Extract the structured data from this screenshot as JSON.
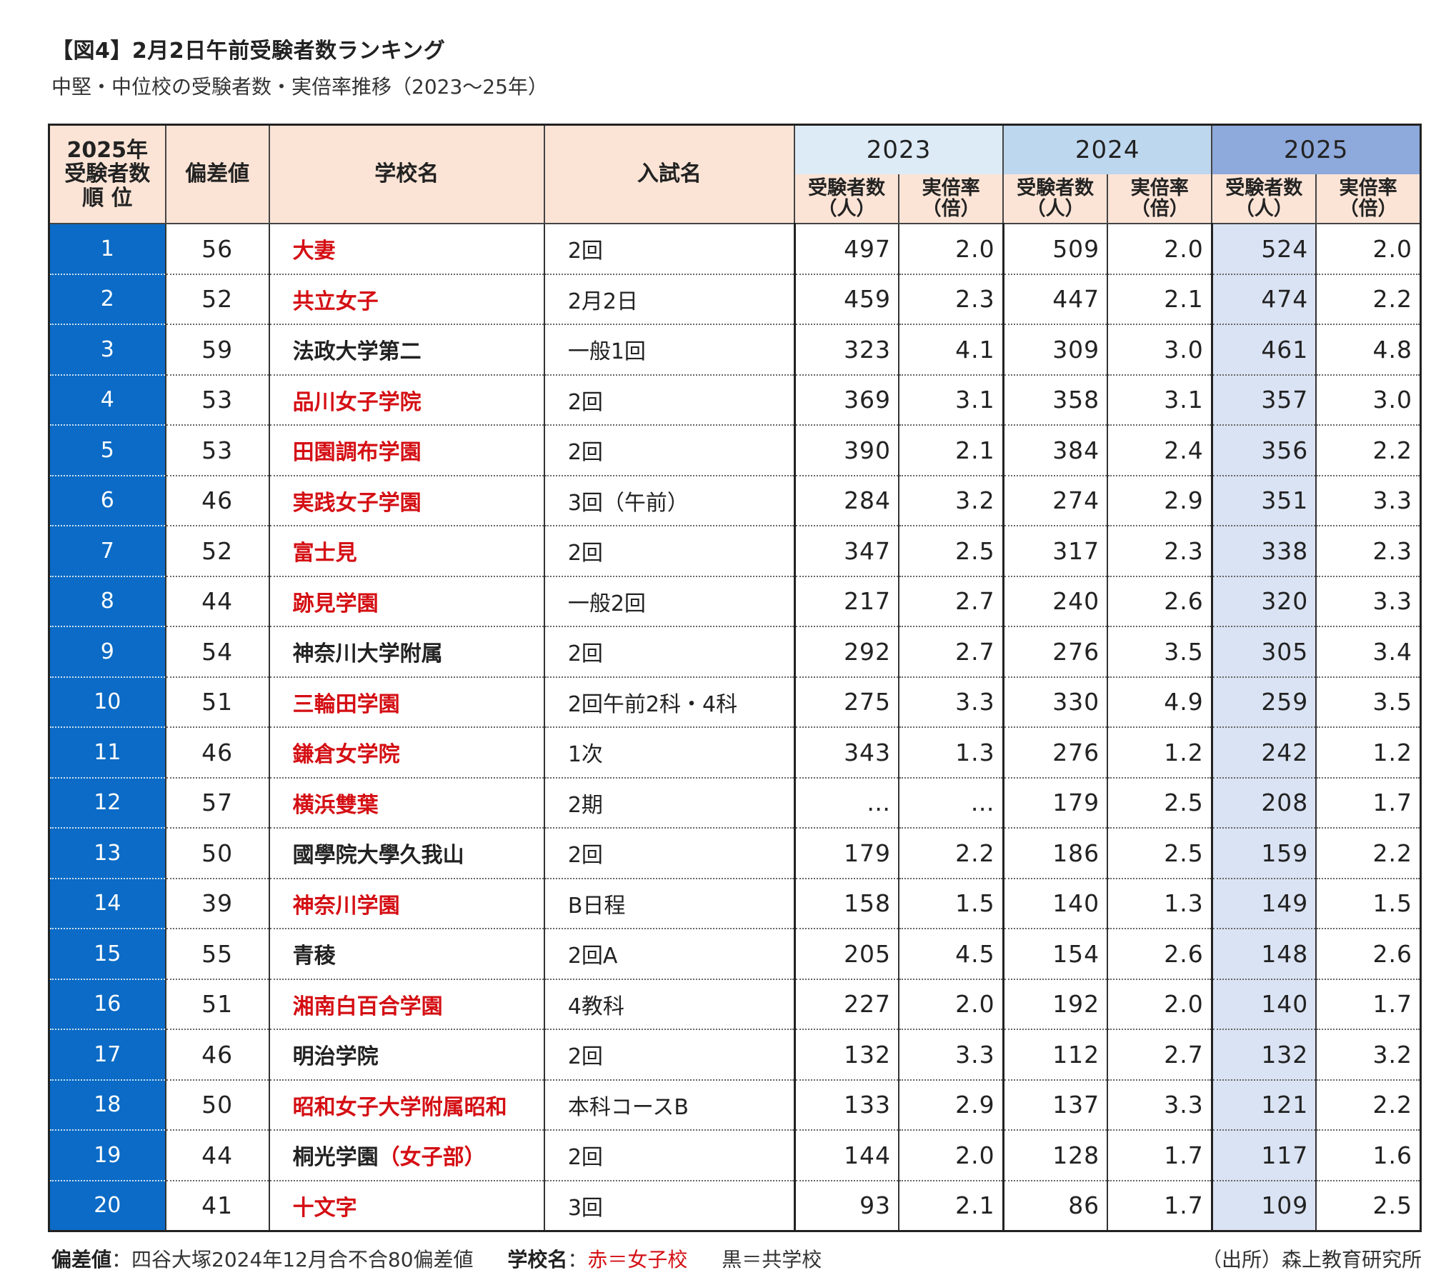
{
  "title": "【図4】2月2日午前受験者数ランキング",
  "subtitle": "中堅・中位校の受験者数・実倍率推移（2023～25年）",
  "header": {
    "rank_lines": [
      "2025年",
      "受験者数",
      "順 位"
    ],
    "deviation": "偏差値",
    "school": "学校名",
    "exam": "入試名",
    "years": [
      "2023",
      "2024",
      "2025"
    ],
    "applicants_line1": "受験者数",
    "applicants_line2": "（人）",
    "rate_line1": "実倍率",
    "rate_line2": "（倍）"
  },
  "colors": {
    "rank_bg": "#0b6bc6",
    "header_bg": "#fbe4d6",
    "year2023_bg": "#ddebf7",
    "year2024_bg": "#bdd7ee",
    "year2025_bg": "#8ea9db",
    "highlight_2025": "#dae3f3",
    "girls_school": "#d40f14"
  },
  "rows": [
    {
      "rank": "1",
      "dev": "56",
      "school": "大妻",
      "school_red": "大妻",
      "school_black": "",
      "exam": "2回",
      "a2023": "497",
      "r2023": "2.0",
      "a2024": "509",
      "r2024": "2.0",
      "a2025": "524",
      "r2025": "2.0"
    },
    {
      "rank": "2",
      "dev": "52",
      "school": "共立女子",
      "school_red": "共立女子",
      "school_black": "",
      "exam": "2月2日",
      "a2023": "459",
      "r2023": "2.3",
      "a2024": "447",
      "r2024": "2.1",
      "a2025": "474",
      "r2025": "2.2"
    },
    {
      "rank": "3",
      "dev": "59",
      "school": "法政大学第二",
      "school_red": "",
      "school_black": "法政大学第二",
      "exam": "一般1回",
      "a2023": "323",
      "r2023": "4.1",
      "a2024": "309",
      "r2024": "3.0",
      "a2025": "461",
      "r2025": "4.8"
    },
    {
      "rank": "4",
      "dev": "53",
      "school": "品川女子学院",
      "school_red": "品川女子学院",
      "school_black": "",
      "exam": "2回",
      "a2023": "369",
      "r2023": "3.1",
      "a2024": "358",
      "r2024": "3.1",
      "a2025": "357",
      "r2025": "3.0"
    },
    {
      "rank": "5",
      "dev": "53",
      "school": "田園調布学園",
      "school_red": "田園調布学園",
      "school_black": "",
      "exam": "2回",
      "a2023": "390",
      "r2023": "2.1",
      "a2024": "384",
      "r2024": "2.4",
      "a2025": "356",
      "r2025": "2.2"
    },
    {
      "rank": "6",
      "dev": "46",
      "school": "実践女子学園",
      "school_red": "実践女子学園",
      "school_black": "",
      "exam": "3回（午前）",
      "a2023": "284",
      "r2023": "3.2",
      "a2024": "274",
      "r2024": "2.9",
      "a2025": "351",
      "r2025": "3.3"
    },
    {
      "rank": "7",
      "dev": "52",
      "school": "富士見",
      "school_red": "富士見",
      "school_black": "",
      "exam": "2回",
      "a2023": "347",
      "r2023": "2.5",
      "a2024": "317",
      "r2024": "2.3",
      "a2025": "338",
      "r2025": "2.3"
    },
    {
      "rank": "8",
      "dev": "44",
      "school": "跡見学園",
      "school_red": "跡見学園",
      "school_black": "",
      "exam": "一般2回",
      "a2023": "217",
      "r2023": "2.7",
      "a2024": "240",
      "r2024": "2.6",
      "a2025": "320",
      "r2025": "3.3"
    },
    {
      "rank": "9",
      "dev": "54",
      "school": "神奈川大学附属",
      "school_red": "",
      "school_black": "神奈川大学附属",
      "exam": "2回",
      "a2023": "292",
      "r2023": "2.7",
      "a2024": "276",
      "r2024": "3.5",
      "a2025": "305",
      "r2025": "3.4"
    },
    {
      "rank": "10",
      "dev": "51",
      "school": "三輪田学園",
      "school_red": "三輪田学園",
      "school_black": "",
      "exam": "2回午前2科・4科",
      "a2023": "275",
      "r2023": "3.3",
      "a2024": "330",
      "r2024": "4.9",
      "a2025": "259",
      "r2025": "3.5"
    },
    {
      "rank": "11",
      "dev": "46",
      "school": "鎌倉女学院",
      "school_red": "鎌倉女学院",
      "school_black": "",
      "exam": "1次",
      "a2023": "343",
      "r2023": "1.3",
      "a2024": "276",
      "r2024": "1.2",
      "a2025": "242",
      "r2025": "1.2"
    },
    {
      "rank": "12",
      "dev": "57",
      "school": "横浜雙葉",
      "school_red": "横浜雙葉",
      "school_black": "",
      "exam": "2期",
      "a2023": "…",
      "r2023": "…",
      "a2024": "179",
      "r2024": "2.5",
      "a2025": "208",
      "r2025": "1.7"
    },
    {
      "rank": "13",
      "dev": "50",
      "school": "國學院大學久我山",
      "school_red": "",
      "school_black": "國學院大學久我山",
      "exam": "2回",
      "a2023": "179",
      "r2023": "2.2",
      "a2024": "186",
      "r2024": "2.5",
      "a2025": "159",
      "r2025": "2.2"
    },
    {
      "rank": "14",
      "dev": "39",
      "school": "神奈川学園",
      "school_red": "神奈川学園",
      "school_black": "",
      "exam": "B日程",
      "a2023": "158",
      "r2023": "1.5",
      "a2024": "140",
      "r2024": "1.3",
      "a2025": "149",
      "r2025": "1.5"
    },
    {
      "rank": "15",
      "dev": "55",
      "school": "青稜",
      "school_red": "",
      "school_black": "青稜",
      "exam": "2回A",
      "a2023": "205",
      "r2023": "4.5",
      "a2024": "154",
      "r2024": "2.6",
      "a2025": "148",
      "r2025": "2.6"
    },
    {
      "rank": "16",
      "dev": "51",
      "school": "湘南白百合学園",
      "school_red": "湘南白百合学園",
      "school_black": "",
      "exam": "4教科",
      "a2023": "227",
      "r2023": "2.0",
      "a2024": "192",
      "r2024": "2.0",
      "a2025": "140",
      "r2025": "1.7"
    },
    {
      "rank": "17",
      "dev": "46",
      "school": "明治学院",
      "school_red": "",
      "school_black": "明治学院",
      "exam": "2回",
      "a2023": "132",
      "r2023": "3.3",
      "a2024": "112",
      "r2024": "2.7",
      "a2025": "132",
      "r2025": "3.2"
    },
    {
      "rank": "18",
      "dev": "50",
      "school": "昭和女子大学附属昭和",
      "school_red": "昭和女子大学附属昭和",
      "school_black": "",
      "exam": "本科コースB",
      "a2023": "133",
      "r2023": "2.9",
      "a2024": "137",
      "r2024": "3.3",
      "a2025": "121",
      "r2025": "2.2"
    },
    {
      "rank": "19",
      "dev": "44",
      "school": "桐光学園（女子部）",
      "school_red": "（女子部）",
      "school_black": "桐光学園",
      "exam": "2回",
      "a2023": "144",
      "r2023": "2.0",
      "a2024": "128",
      "r2024": "1.7",
      "a2025": "117",
      "r2025": "1.6"
    },
    {
      "rank": "20",
      "dev": "41",
      "school": "十文字",
      "school_red": "十文字",
      "school_black": "",
      "exam": "3回",
      "a2023": "93",
      "r2023": "2.1",
      "a2024": "86",
      "r2024": "1.7",
      "a2025": "109",
      "r2025": "2.5"
    }
  ],
  "footer": {
    "dev_label": "偏差値",
    "dev_text": "：四谷大塚2024年12月合不合80偏差値",
    "school_label": "学校名",
    "school_sep": "：",
    "red_text": "赤＝女子校",
    "black_text": "黒＝共学校",
    "source": "（出所）森上教育研究所"
  }
}
